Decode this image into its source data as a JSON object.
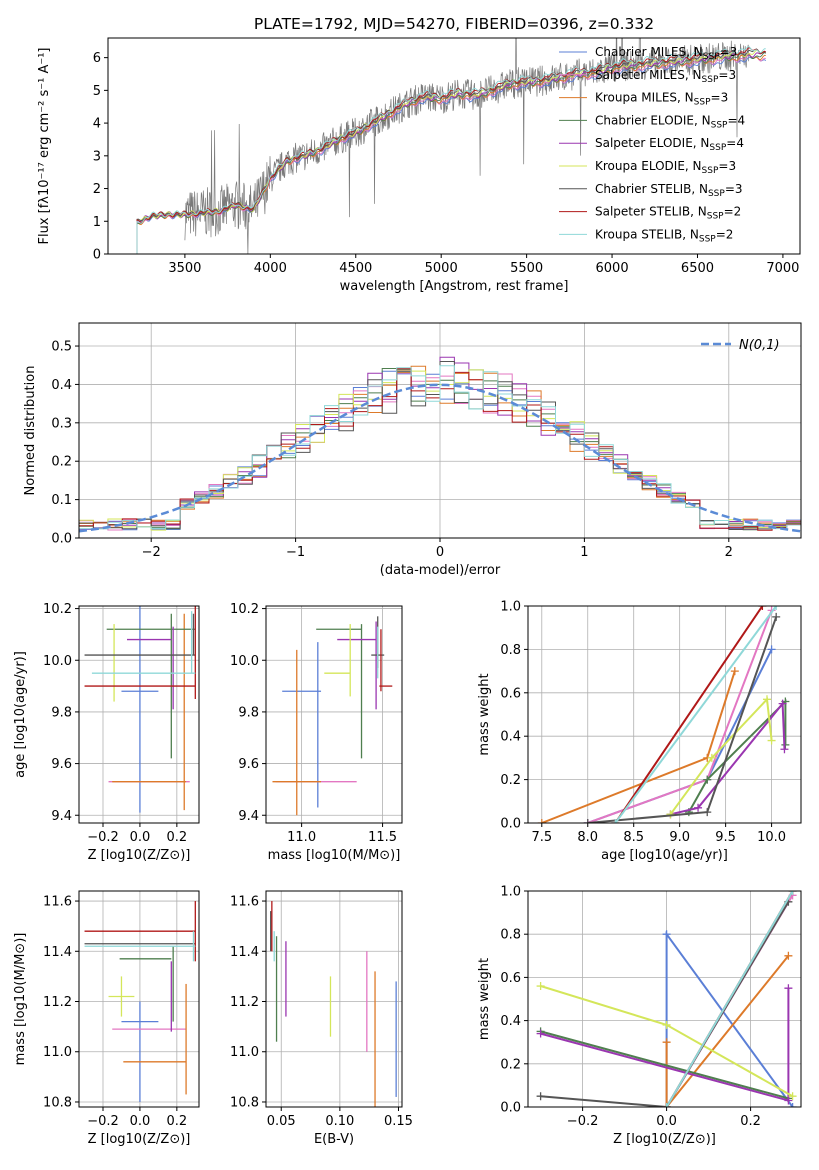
{
  "colors": {
    "Chabrier MILES": "#5b7fd6",
    "Salpeter MILES": "#e377c2",
    "Kroupa MILES": "#dd7a2a",
    "Chabrier ELODIE": "#4f7f4f",
    "Salpeter ELODIE": "#9a36b0",
    "Kroupa ELODIE": "#d4e65a",
    "Chabrier STELIB": "#555555",
    "Salpeter STELIB": "#b01818",
    "Kroupa STELIB": "#8fd8d8"
  },
  "chart_data": [
    {
      "id": "spectrum",
      "type": "line",
      "title": "PLATE=1792, MJD=54270, FIBERID=0396, z=0.332",
      "xlabel": "wavelength [Angstrom, rest frame]",
      "ylabel": "Flux [f_λ 10^-17 erg cm^-2 s^-1 A^-1]",
      "xlim": [
        3050,
        7100
      ],
      "ylim": [
        0,
        6.6
      ],
      "xticks": [
        3500,
        4000,
        4500,
        5000,
        5500,
        6000,
        6500,
        7000
      ],
      "yticks": [
        0,
        1,
        2,
        3,
        4,
        5,
        6
      ],
      "legend_position": "top-right",
      "legend": [
        {
          "series": "Chabrier MILES",
          "label": "Chabrier MILES, N_SSP=3"
        },
        {
          "series": "Salpeter MILES",
          "label": "Salpeter MILES, N_SSP=3"
        },
        {
          "series": "Kroupa MILES",
          "label": "Kroupa MILES, N_SSP=3"
        },
        {
          "series": "Chabrier ELODIE",
          "label": "Chabrier ELODIE, N_SSP=4"
        },
        {
          "series": "Salpeter ELODIE",
          "label": "Salpeter ELODIE, N_SSP=4"
        },
        {
          "series": "Kroupa ELODIE",
          "label": "Kroupa ELODIE, N_SSP=3"
        },
        {
          "series": "Chabrier STELIB",
          "label": "Chabrier STELIB, N_SSP=3"
        },
        {
          "series": "Salpeter STELIB",
          "label": "Salpeter STELIB, N_SSP=2"
        },
        {
          "series": "Kroupa STELIB",
          "label": "Kroupa STELIB, N_SSP=2"
        }
      ],
      "model_x": [
        3220,
        3300,
        3400,
        3500,
        3600,
        3700,
        3800,
        3900,
        4000,
        4100,
        4200,
        4300,
        4400,
        4500,
        4600,
        4700,
        4800,
        4900,
        5000,
        5100,
        5200,
        5300,
        5400,
        5500,
        5600,
        5700,
        5800,
        5900,
        6000,
        6100,
        6200,
        6300,
        6400,
        6500,
        6600,
        6700,
        6800,
        6900
      ],
      "model_y": [
        0.95,
        1.15,
        1.2,
        1.2,
        1.25,
        1.3,
        1.5,
        1.35,
        2.3,
        2.85,
        3.0,
        3.2,
        3.5,
        3.7,
        4.0,
        4.3,
        4.6,
        4.8,
        4.75,
        4.9,
        4.85,
        5.0,
        5.2,
        5.25,
        5.3,
        5.4,
        5.5,
        5.55,
        5.7,
        5.75,
        5.8,
        5.85,
        5.9,
        5.95,
        6.0,
        6.05,
        6.1,
        6.1
      ],
      "data_x_range": [
        3500,
        6800
      ],
      "data_noise": 0.6
    },
    {
      "id": "residuals",
      "type": "histogram",
      "xlabel": "(data-model)/error",
      "ylabel": "Normed distribution",
      "xlim": [
        -2.5,
        2.5
      ],
      "ylim": [
        0,
        0.56
      ],
      "xticks": [
        -2,
        -1,
        0,
        1,
        2
      ],
      "yticks": [
        0,
        0.1,
        0.2,
        0.3,
        0.4,
        0.5
      ],
      "legend_position": "top-right",
      "gauss_label": "N(0,1)",
      "bin_width": 0.1,
      "gauss_color": "#5b8bd6"
    },
    {
      "id": "age-vs-Z",
      "type": "errorbar",
      "xlabel": "Z [log10(Z/Z⊙)]",
      "ylabel": "age [log10(age/yr)]",
      "xlim": [
        -0.33,
        0.32
      ],
      "ylim": [
        9.37,
        10.21
      ],
      "xticks": [
        -0.2,
        0.0,
        0.2
      ],
      "yticks": [
        9.4,
        9.6,
        9.8,
        10.0,
        10.2
      ],
      "points": [
        {
          "series": "Chabrier MILES",
          "x": 0.0,
          "xerr": 0.1,
          "y": 9.88,
          "yerr": 0.47
        },
        {
          "series": "Salpeter MILES",
          "x": 0.05,
          "xerr": 0.22,
          "y": 9.53,
          "yerr": 0.0
        },
        {
          "series": "Kroupa MILES",
          "x": 0.05,
          "xerr": 0.2,
          "y": 9.53,
          "yerr": 0.0
        },
        {
          "series": "Kroupa MILES",
          "x": 0.24,
          "xerr": 0.0,
          "y": 9.8,
          "yerr": 0.38
        },
        {
          "series": "Chabrier ELODIE",
          "x": 0.06,
          "xerr": 0.24,
          "y": 10.12,
          "yerr": 0.0
        },
        {
          "series": "Chabrier ELODIE",
          "x": 0.17,
          "xerr": 0.0,
          "y": 9.9,
          "yerr": 0.28
        },
        {
          "series": "Salpeter ELODIE",
          "x": 0.05,
          "xerr": 0.12,
          "y": 10.08,
          "yerr": 0.0
        },
        {
          "series": "Salpeter ELODIE",
          "x": 0.18,
          "xerr": 0.0,
          "y": 9.97,
          "yerr": 0.16
        },
        {
          "series": "Kroupa ELODIE",
          "x": -0.14,
          "xerr": 0.0,
          "y": 9.99,
          "yerr": 0.15
        },
        {
          "series": "Chabrier STELIB",
          "x": 0.0,
          "xerr": 0.3,
          "y": 10.02,
          "yerr": 0.0
        },
        {
          "series": "Chabrier STELIB",
          "x": 0.29,
          "xerr": 0.0,
          "y": 10.1,
          "yerr": 0.08
        },
        {
          "series": "Salpeter STELIB",
          "x": 0.0,
          "xerr": 0.3,
          "y": 9.9,
          "yerr": 0.0
        },
        {
          "series": "Salpeter STELIB",
          "x": 0.3,
          "xerr": 0.0,
          "y": 10.03,
          "yerr": 0.18
        },
        {
          "series": "Kroupa STELIB",
          "x": 0.02,
          "xerr": 0.28,
          "y": 9.95,
          "yerr": 0.0
        },
        {
          "series": "Kroupa STELIB",
          "x": 0.28,
          "xerr": 0.0,
          "y": 10.07,
          "yerr": 0.12
        }
      ]
    },
    {
      "id": "age-vs-mass",
      "type": "errorbar",
      "xlabel": "mass [log10(M/M⊙)]",
      "ylabel": "",
      "xlim": [
        10.78,
        11.62
      ],
      "ylim": [
        9.37,
        10.21
      ],
      "xticks": [
        11.0,
        11.5
      ],
      "yticks": [
        9.4,
        9.6,
        9.8,
        10.0,
        10.2
      ],
      "points": [
        {
          "series": "Chabrier MILES",
          "x": 11.0,
          "xerr": 0.12,
          "y": 9.88,
          "yerr": 0.0
        },
        {
          "series": "Chabrier MILES",
          "x": 11.1,
          "xerr": 0.0,
          "y": 9.75,
          "yerr": 0.32
        },
        {
          "series": "Salpeter MILES",
          "x": 11.09,
          "xerr": 0.25,
          "y": 9.53,
          "yerr": 0.0
        },
        {
          "series": "Kroupa MILES",
          "x": 10.97,
          "xerr": 0.15,
          "y": 9.53,
          "yerr": 0.0
        },
        {
          "series": "Kroupa MILES",
          "x": 10.97,
          "xerr": 0.0,
          "y": 9.72,
          "yerr": 0.32
        },
        {
          "series": "Chabrier ELODIE",
          "x": 11.37,
          "xerr": 0.0,
          "y": 9.88,
          "yerr": 0.26
        },
        {
          "series": "Chabrier ELODIE",
          "x": 11.23,
          "xerr": 0.14,
          "y": 10.12,
          "yerr": 0.0
        },
        {
          "series": "Salpeter ELODIE",
          "x": 11.34,
          "xerr": 0.12,
          "y": 10.08,
          "yerr": 0.0
        },
        {
          "series": "Salpeter ELODIE",
          "x": 11.46,
          "xerr": 0.0,
          "y": 9.98,
          "yerr": 0.17
        },
        {
          "series": "Kroupa ELODIE",
          "x": 11.22,
          "xerr": 0.08,
          "y": 9.95,
          "yerr": 0.0
        },
        {
          "series": "Kroupa ELODIE",
          "x": 11.3,
          "xerr": 0.0,
          "y": 10.0,
          "yerr": 0.14
        },
        {
          "series": "Chabrier STELIB",
          "x": 11.47,
          "xerr": 0.04,
          "y": 10.02,
          "yerr": 0.0
        },
        {
          "series": "Chabrier STELIB",
          "x": 11.47,
          "xerr": 0.0,
          "y": 10.07,
          "yerr": 0.1
        },
        {
          "series": "Salpeter STELIB",
          "x": 11.52,
          "xerr": 0.04,
          "y": 9.9,
          "yerr": 0.0
        },
        {
          "series": "Salpeter STELIB",
          "x": 11.49,
          "xerr": 0.0,
          "y": 10.0,
          "yerr": 0.12
        },
        {
          "series": "Kroupa STELIB",
          "x": 11.47,
          "xerr": 0.0,
          "y": 10.03,
          "yerr": 0.1
        }
      ]
    },
    {
      "id": "weight-vs-age",
      "type": "line",
      "xlabel": "age [log10(age/yr)]",
      "ylabel": "mass weight",
      "xlim": [
        7.35,
        10.32
      ],
      "ylim": [
        0,
        1.0
      ],
      "xticks": [
        7.5,
        8.0,
        8.5,
        9.0,
        9.5,
        10.0
      ],
      "yticks": [
        0.0,
        0.2,
        0.4,
        0.6,
        0.8,
        1.0
      ],
      "series": [
        {
          "name": "Chabrier MILES",
          "x": [
            8.0,
            9.3,
            10.0
          ],
          "y": [
            0.0,
            0.2,
            0.8
          ]
        },
        {
          "name": "Salpeter MILES",
          "x": [
            8.0,
            9.3,
            10.0
          ],
          "y": [
            0.0,
            0.2,
            0.98
          ]
        },
        {
          "name": "Kroupa MILES",
          "x": [
            7.5,
            9.3,
            9.6
          ],
          "y": [
            0.0,
            0.3,
            0.7
          ]
        },
        {
          "name": "Chabrier ELODIE",
          "x": [
            9.1,
            9.3,
            10.15,
            10.15
          ],
          "y": [
            0.05,
            0.2,
            0.56,
            0.36
          ]
        },
        {
          "name": "Salpeter ELODIE",
          "x": [
            8.9,
            9.2,
            10.12,
            10.14
          ],
          "y": [
            0.04,
            0.07,
            0.55,
            0.34
          ]
        },
        {
          "name": "Kroupa ELODIE",
          "x": [
            8.9,
            9.35,
            9.95,
            10.0
          ],
          "y": [
            0.04,
            0.3,
            0.57,
            0.38
          ]
        },
        {
          "name": "Chabrier STELIB",
          "x": [
            8.0,
            9.3,
            10.05
          ],
          "y": [
            0.0,
            0.05,
            0.95
          ]
        },
        {
          "name": "Salpeter STELIB",
          "x": [
            8.3,
            9.9
          ],
          "y": [
            0.0,
            1.0
          ]
        },
        {
          "name": "Kroupa STELIB",
          "x": [
            8.3,
            10.05
          ],
          "y": [
            0.0,
            1.0
          ]
        }
      ]
    },
    {
      "id": "mass-vs-Z",
      "type": "errorbar",
      "xlabel": "Z [log10(Z/Z⊙)]",
      "ylabel": "mass [log10(M/M⊙)]",
      "xlim": [
        -0.33,
        0.32
      ],
      "ylim": [
        10.78,
        11.64
      ],
      "xticks": [
        -0.2,
        0.0,
        0.2
      ],
      "yticks": [
        10.8,
        11.0,
        11.2,
        11.4,
        11.6
      ],
      "points": [
        {
          "series": "Chabrier MILES",
          "x": 0.0,
          "xerr": 0.1,
          "y": 11.12,
          "yerr": 0.0
        },
        {
          "series": "Chabrier MILES",
          "x": 0.0,
          "xerr": 0.0,
          "y": 11.0,
          "yerr": 0.2
        },
        {
          "series": "Salpeter MILES",
          "x": 0.05,
          "xerr": 0.2,
          "y": 11.09,
          "yerr": 0.0
        },
        {
          "series": "Kroupa MILES",
          "x": 0.08,
          "xerr": 0.17,
          "y": 10.96,
          "yerr": 0.0
        },
        {
          "series": "Kroupa MILES",
          "x": 0.25,
          "xerr": 0.0,
          "y": 11.05,
          "yerr": 0.22
        },
        {
          "series": "Chabrier ELODIE",
          "x": 0.03,
          "xerr": 0.14,
          "y": 11.37,
          "yerr": 0.0
        },
        {
          "series": "Chabrier ELODIE",
          "x": 0.18,
          "xerr": 0.0,
          "y": 11.27,
          "yerr": 0.15
        },
        {
          "series": "Salpeter ELODIE",
          "x": 0.17,
          "xerr": 0.0,
          "y": 11.22,
          "yerr": 0.14
        },
        {
          "series": "Kroupa ELODIE",
          "x": -0.1,
          "xerr": 0.07,
          "y": 11.22,
          "yerr": 0.0
        },
        {
          "series": "Kroupa ELODIE",
          "x": -0.1,
          "xerr": 0.0,
          "y": 11.22,
          "yerr": 0.08
        },
        {
          "series": "Chabrier STELIB",
          "x": 0.0,
          "xerr": 0.3,
          "y": 11.43,
          "yerr": 0.0
        },
        {
          "series": "Salpeter STELIB",
          "x": 0.0,
          "xerr": 0.3,
          "y": 11.48,
          "yerr": 0.0
        },
        {
          "series": "Salpeter STELIB",
          "x": 0.3,
          "xerr": 0.0,
          "y": 11.48,
          "yerr": 0.12
        },
        {
          "series": "Kroupa STELIB",
          "x": 0.0,
          "xerr": 0.3,
          "y": 11.42,
          "yerr": 0.0
        },
        {
          "series": "Kroupa STELIB",
          "x": 0.29,
          "xerr": 0.0,
          "y": 11.42,
          "yerr": 0.06
        }
      ]
    },
    {
      "id": "mass-vs-EBV",
      "type": "errorbar",
      "xlabel": "E(B-V)",
      "ylabel": "",
      "xlim": [
        0.037,
        0.153
      ],
      "ylim": [
        10.78,
        11.64
      ],
      "xticks": [
        0.05,
        0.1,
        0.15
      ],
      "yticks": [
        10.8,
        11.0,
        11.2,
        11.4,
        11.6
      ],
      "points": [
        {
          "series": "Chabrier MILES",
          "x": 0.148,
          "xerr": 0.0,
          "y": 11.05,
          "yerr": 0.23
        },
        {
          "series": "Salpeter MILES",
          "x": 0.123,
          "xerr": 0.0,
          "y": 11.2,
          "yerr": 0.2
        },
        {
          "series": "Kroupa MILES",
          "x": 0.13,
          "xerr": 0.0,
          "y": 11.03,
          "yerr": 0.29
        },
        {
          "series": "Chabrier ELODIE",
          "x": 0.046,
          "xerr": 0.0,
          "y": 11.25,
          "yerr": 0.21
        },
        {
          "series": "Salpeter ELODIE",
          "x": 0.054,
          "xerr": 0.0,
          "y": 11.29,
          "yerr": 0.15
        },
        {
          "series": "Kroupa ELODIE",
          "x": 0.092,
          "xerr": 0.0,
          "y": 11.18,
          "yerr": 0.12
        },
        {
          "series": "Chabrier STELIB",
          "x": 0.041,
          "xerr": 0.0,
          "y": 11.48,
          "yerr": 0.08
        },
        {
          "series": "Salpeter STELIB",
          "x": 0.042,
          "xerr": 0.0,
          "y": 11.5,
          "yerr": 0.1
        },
        {
          "series": "Kroupa STELIB",
          "x": 0.044,
          "xerr": 0.0,
          "y": 11.42,
          "yerr": 0.06
        }
      ]
    },
    {
      "id": "weight-vs-Z",
      "type": "line",
      "xlabel": "Z [log10(Z/Z⊙)]",
      "ylabel": "mass weight",
      "xlim": [
        -0.33,
        0.32
      ],
      "ylim": [
        0,
        1.0
      ],
      "xticks": [
        -0.2,
        0.0,
        0.2
      ],
      "yticks": [
        0.0,
        0.2,
        0.4,
        0.6,
        0.8,
        1.0
      ],
      "series": [
        {
          "name": "Chabrier MILES",
          "x": [
            0.0,
            0.0,
            0.3
          ],
          "y": [
            0.0,
            0.8,
            0.0
          ]
        },
        {
          "name": "Salpeter MILES",
          "x": [
            0.0,
            0.3
          ],
          "y": [
            0.0,
            0.98
          ]
        },
        {
          "name": "Kroupa MILES",
          "x": [
            0.0,
            0.0,
            0.29
          ],
          "y": [
            0.3,
            0.0,
            0.7
          ]
        },
        {
          "name": "Chabrier ELODIE",
          "x": [
            -0.3,
            0.29
          ],
          "y": [
            0.35,
            0.04
          ]
        },
        {
          "name": "Salpeter ELODIE",
          "x": [
            -0.3,
            0.29,
            0.29
          ],
          "y": [
            0.34,
            0.03,
            0.55
          ]
        },
        {
          "name": "Kroupa ELODIE",
          "x": [
            -0.3,
            0.0,
            0.3
          ],
          "y": [
            0.56,
            0.38,
            0.05
          ]
        },
        {
          "name": "Chabrier STELIB",
          "x": [
            -0.3,
            0.0,
            0.29
          ],
          "y": [
            0.05,
            0.0,
            0.95
          ]
        },
        {
          "name": "Salpeter STELIB",
          "x": [
            0.0,
            0.3
          ],
          "y": [
            0.0,
            1.0
          ]
        },
        {
          "name": "Kroupa STELIB",
          "x": [
            0.0,
            0.3
          ],
          "y": [
            0.0,
            1.0
          ]
        }
      ]
    }
  ]
}
